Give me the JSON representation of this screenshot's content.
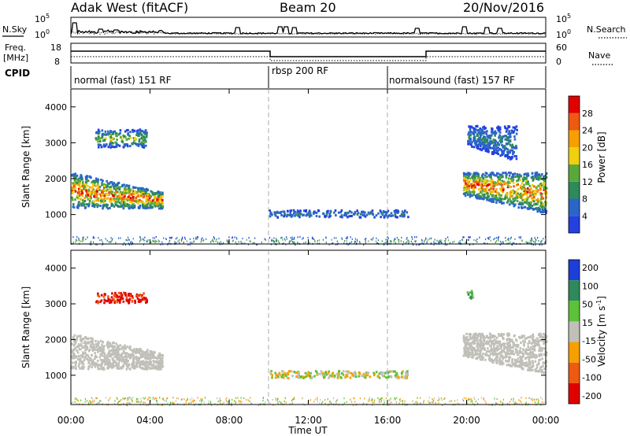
{
  "header": {
    "radar": "Adak West (fitACF)",
    "beam": "Beam 20",
    "date": "20/Nov/2016"
  },
  "strip_labels": {
    "nsky": "N.Sky",
    "nsearch": "N.Search",
    "freq_line1": "Freq.",
    "freq_line2": "[MHz]",
    "nave": "Nave",
    "cpid": "CPID"
  },
  "noise_axis": {
    "left_ticks": [
      "10^5",
      "10^0"
    ],
    "right_ticks": [
      "10^5",
      "10^0"
    ]
  },
  "freq_axis": {
    "left_ticks": [
      "18",
      "8"
    ],
    "right_ticks": [
      "60",
      "0"
    ]
  },
  "cpid_segments": [
    {
      "label": "normal (fast) 151 RF",
      "start_h": 0
    },
    {
      "label": "rbsp 200 RF",
      "start_h": 10
    },
    {
      "label": "normalsound (fast) 157 RF",
      "start_h": 16
    }
  ],
  "x_axis": {
    "title": "Time UT",
    "ticks": [
      "00:00",
      "04:00",
      "08:00",
      "12:00",
      "16:00",
      "20:00",
      "00:00"
    ]
  },
  "colors": {
    "ground_scatter": "#c0c0b8",
    "power_scale": [
      "#2440e0",
      "#2a66c8",
      "#2e8a5a",
      "#5aa83c",
      "#f0d010",
      "#f5a000",
      "#ee5a10",
      "#e00000"
    ],
    "velocity_scale": [
      "#1e3ed8",
      "#2e8a5a",
      "#5cc238",
      "#c0c0b8",
      "#f5a000",
      "#ee5a10",
      "#e00000"
    ]
  },
  "chart_data": [
    {
      "type": "heatmap",
      "panel": "power",
      "ylabel": "Slant Range [km]",
      "xlabel": "Time UT",
      "y_ticks": [
        "1000",
        "2000",
        "3000",
        "4000"
      ],
      "colorbar_label": "Power [dB]",
      "colorbar_ticks": [
        "4",
        "8",
        "12",
        "16",
        "20",
        "24",
        "28"
      ],
      "xlim_hours": [
        0,
        24
      ],
      "ylim_km": [
        180,
        4500
      ],
      "scatter_regions": [
        {
          "from_h": 0.0,
          "to_h": 4.6,
          "range_km": [
            1200,
            2200
          ],
          "power_db": [
            6,
            30
          ],
          "class": "ionospheric"
        },
        {
          "from_h": 1.2,
          "to_h": 3.8,
          "range_km": [
            2900,
            3400
          ],
          "power_db": [
            4,
            20
          ],
          "class": "ionospheric"
        },
        {
          "from_h": 10.0,
          "to_h": 17.0,
          "range_km": [
            950,
            1150
          ],
          "power_db": [
            4,
            12
          ],
          "class": "ionospheric"
        },
        {
          "from_h": 19.8,
          "to_h": 24.0,
          "range_km": [
            1050,
            2200
          ],
          "power_db": [
            6,
            30
          ],
          "class": "ionospheric"
        },
        {
          "from_h": 20.0,
          "to_h": 22.5,
          "range_km": [
            2500,
            3500
          ],
          "power_db": [
            4,
            12
          ],
          "class": "ionospheric"
        },
        {
          "from_h": 0.0,
          "to_h": 24.0,
          "range_km": [
            180,
            400
          ],
          "power_db": [
            4,
            16
          ],
          "class": "noise"
        }
      ]
    },
    {
      "type": "heatmap",
      "panel": "velocity",
      "ylabel": "Slant Range [km]",
      "xlabel": "Time UT",
      "y_ticks": [
        "1000",
        "2000",
        "3000",
        "4000"
      ],
      "colorbar_label": "Velocity [m s^-1]",
      "colorbar_ticks": [
        "200",
        "100",
        "50",
        "15",
        "-15",
        "-50",
        "-100",
        "-200"
      ],
      "xlim_hours": [
        0,
        24
      ],
      "ylim_km": [
        180,
        4500
      ],
      "scatter_regions": [
        {
          "from_h": 0.0,
          "to_h": 4.6,
          "range_km": [
            1200,
            2200
          ],
          "velocity_ms": [
            -15,
            15
          ],
          "class": "ground"
        },
        {
          "from_h": 1.2,
          "to_h": 3.8,
          "range_km": [
            3050,
            3350
          ],
          "velocity_ms": [
            -200,
            -50
          ],
          "class": "ionospheric"
        },
        {
          "from_h": 10.0,
          "to_h": 17.0,
          "range_km": [
            950,
            1150
          ],
          "velocity_ms": [
            -50,
            50
          ],
          "class": "ionospheric"
        },
        {
          "from_h": 19.8,
          "to_h": 24.0,
          "range_km": [
            1050,
            2200
          ],
          "velocity_ms": [
            -15,
            15
          ],
          "class": "ground"
        },
        {
          "from_h": 20.0,
          "to_h": 20.3,
          "range_km": [
            3100,
            3400
          ],
          "velocity_ms": [
            -15,
            100
          ],
          "class": "ionospheric"
        },
        {
          "from_h": 0.0,
          "to_h": 24.0,
          "range_km": [
            180,
            400
          ],
          "velocity_ms": [
            -50,
            50
          ],
          "class": "noise"
        }
      ]
    }
  ]
}
